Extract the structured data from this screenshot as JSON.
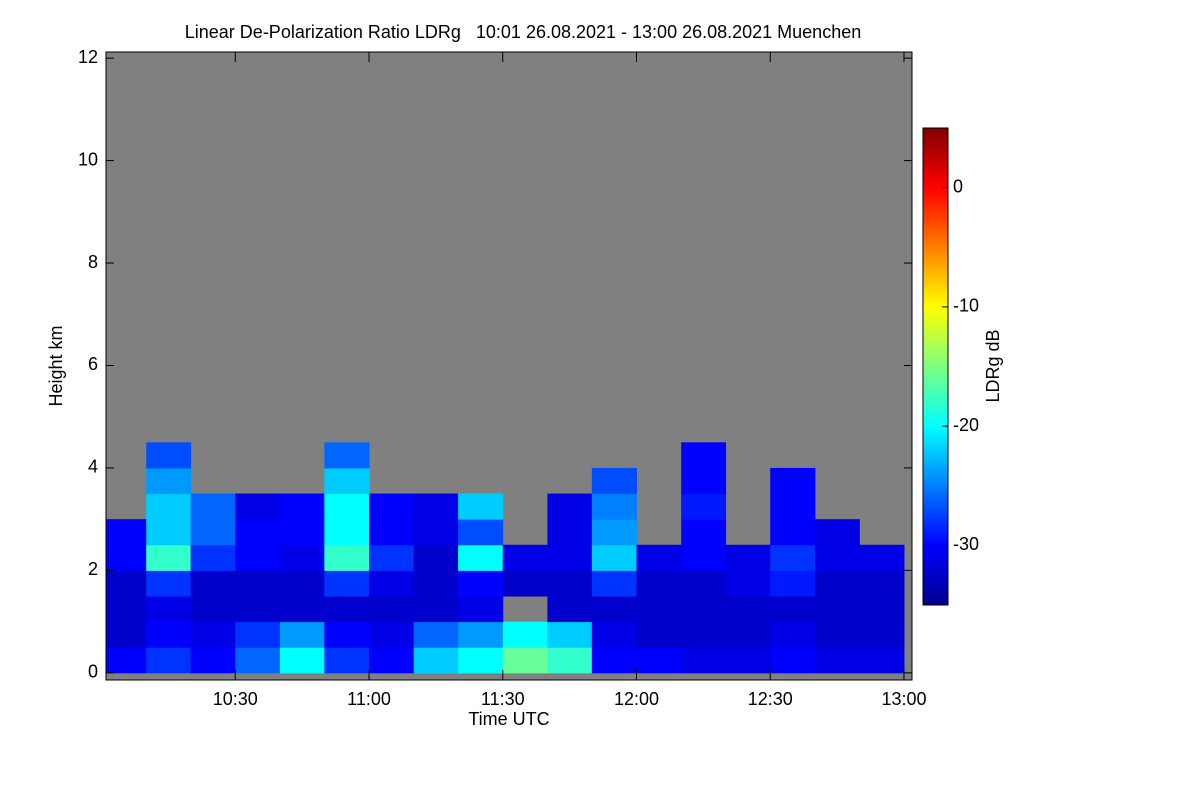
{
  "chart_data": {
    "type": "heatmap",
    "title": "Linear De-Polarization Ratio LDRg   10:01 26.08.2021 - 13:00 26.08.2021 Muenchen",
    "x_label": "Time UTC",
    "y_label": "Height km",
    "colorbar_label": "LDRg dB",
    "colormap": "jet",
    "xlim": [
      10.0167,
      13.03
    ],
    "ylim": [
      -0.14,
      12.12
    ],
    "zlim": [
      -35,
      5
    ],
    "xticks": [
      {
        "value": 10.5,
        "label": "10:30"
      },
      {
        "value": 11,
        "label": "11:00"
      },
      {
        "value": 11.5,
        "label": "11:30"
      },
      {
        "value": 12,
        "label": "12:00"
      },
      {
        "value": 12.5,
        "label": "12:30"
      },
      {
        "value": 13,
        "label": "13:00"
      }
    ],
    "yticks": [
      0,
      2,
      4,
      6,
      8,
      10,
      12
    ],
    "zticks": [
      0,
      -10,
      -20,
      -30
    ],
    "x_bins": [
      10.0167,
      10.167,
      10.333,
      10.5,
      10.667,
      10.833,
      11,
      11.167,
      11.333,
      11.5,
      11.667,
      11.833,
      12,
      12.167,
      12.333,
      12.5,
      12.667,
      12.833,
      13.0
    ],
    "y_bins": [
      0,
      0.5,
      1,
      1.5,
      2,
      2.5,
      3,
      3.5,
      4,
      4.5
    ],
    "z": [
      [
        -30,
        -28,
        -30,
        -26,
        -20,
        -28,
        -30,
        -22,
        -20,
        -16,
        -18,
        -30,
        -30,
        -31,
        -31,
        -30,
        -31,
        -31
      ],
      [
        -32,
        -30,
        -31,
        -28,
        -24,
        -30,
        -31,
        -26,
        -24,
        -20,
        -22,
        -31,
        -32,
        -32,
        -32,
        -31,
        -32,
        -32
      ],
      [
        -32,
        -31,
        -32,
        -32,
        -32,
        -32,
        -32,
        -32,
        -31,
        null,
        -32,
        -32,
        -32,
        -32,
        -32,
        -32,
        -32,
        -32
      ],
      [
        -32,
        -28,
        -32,
        -32,
        -32,
        -28,
        -31,
        -32,
        -30,
        -32,
        -32,
        -28,
        -32,
        -32,
        -31,
        -29,
        -32,
        -32
      ],
      [
        -30,
        -18,
        -28,
        -30,
        -31,
        -18,
        -28,
        -32,
        -20,
        -31,
        -31,
        -22,
        -31,
        -30,
        -31,
        -28,
        -31,
        -31
      ],
      [
        -30,
        -22,
        -26,
        -30,
        -30,
        -20,
        -30,
        -31,
        -27,
        null,
        -31,
        -24,
        null,
        -30,
        null,
        -30,
        -31,
        null
      ],
      [
        null,
        -22,
        -26,
        -31,
        -30,
        -20,
        -30,
        -31,
        -22,
        null,
        -31,
        -25,
        null,
        -29,
        null,
        -30,
        null,
        null
      ],
      [
        null,
        -24,
        null,
        null,
        null,
        -22,
        null,
        null,
        null,
        null,
        null,
        -27,
        null,
        -30,
        null,
        -30,
        null,
        null
      ],
      [
        null,
        -27,
        null,
        null,
        null,
        -26,
        null,
        null,
        null,
        null,
        null,
        null,
        null,
        -30,
        null,
        null,
        null,
        null
      ]
    ]
  }
}
